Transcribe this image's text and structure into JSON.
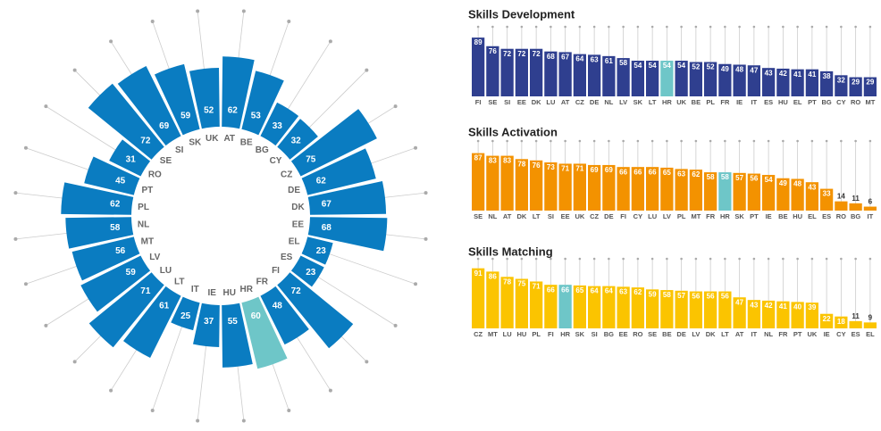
{
  "chart_data": [
    {
      "type": "radial_bar",
      "categories": [
        "AT",
        "BE",
        "BG",
        "CY",
        "CZ",
        "DE",
        "DK",
        "EE",
        "EL",
        "ES",
        "FI",
        "FR",
        "HR",
        "HU",
        "IE",
        "IT",
        "LT",
        "LU",
        "LV",
        "MT",
        "NL",
        "PL",
        "PT",
        "RO",
        "SE",
        "SI",
        "SK",
        "UK"
      ],
      "values": [
        62,
        53,
        33,
        32,
        75,
        62,
        67,
        68,
        23,
        23,
        72,
        48,
        60,
        55,
        37,
        25,
        61,
        71,
        59,
        56,
        58,
        62,
        45,
        31,
        72,
        69,
        59,
        52
      ],
      "color": "#0a7cc1",
      "highlight_category": "HR",
      "highlight_color": "#6ec6c8",
      "rlim": [
        0,
        100
      ]
    },
    {
      "type": "bar",
      "title": "Skills Development",
      "categories": [
        "FI",
        "SE",
        "SI",
        "EE",
        "DK",
        "LU",
        "AT",
        "CZ",
        "DE",
        "NL",
        "LV",
        "SK",
        "LT",
        "HR",
        "UK",
        "BE",
        "PL",
        "FR",
        "IE",
        "IT",
        "ES",
        "HU",
        "EL",
        "PT",
        "BG",
        "CY",
        "RO",
        "MT"
      ],
      "values": [
        89,
        76,
        72,
        72,
        72,
        68,
        67,
        64,
        63,
        61,
        58,
        54,
        54,
        54,
        54,
        52,
        52,
        49,
        48,
        47,
        43,
        42,
        41,
        41,
        38,
        32,
        29,
        29
      ],
      "color": "#2f3f8f",
      "highlight_category": "HR",
      "highlight_color": "#6ec6c8",
      "ylim": [
        0,
        100
      ]
    },
    {
      "type": "bar",
      "title": "Skills Activation",
      "categories": [
        "SE",
        "NL",
        "AT",
        "DK",
        "LT",
        "SI",
        "EE",
        "UK",
        "CZ",
        "DE",
        "FI",
        "CY",
        "LU",
        "LV",
        "PL",
        "MT",
        "FR",
        "HR",
        "SK",
        "PT",
        "IE",
        "BE",
        "HU",
        "EL",
        "ES",
        "RO",
        "BG",
        "IT"
      ],
      "values": [
        87,
        83,
        83,
        78,
        76,
        73,
        71,
        71,
        69,
        69,
        66,
        66,
        66,
        65,
        63,
        62,
        58,
        58,
        57,
        56,
        54,
        49,
        48,
        43,
        33,
        14,
        11,
        6
      ],
      "color": "#f39200",
      "highlight_category": "HR",
      "highlight_color": "#6ec6c8",
      "ylim": [
        0,
        100
      ]
    },
    {
      "type": "bar",
      "title": "Skills Matching",
      "categories": [
        "CZ",
        "MT",
        "LU",
        "HU",
        "PL",
        "FI",
        "HR",
        "SK",
        "SI",
        "BG",
        "EE",
        "RO",
        "SE",
        "BE",
        "DE",
        "LV",
        "DK",
        "LT",
        "AT",
        "IT",
        "NL",
        "FR",
        "PT",
        "UK",
        "IE",
        "CY",
        "ES",
        "EL"
      ],
      "values": [
        91,
        86,
        78,
        75,
        71,
        66,
        66,
        65,
        64,
        64,
        63,
        62,
        59,
        58,
        57,
        56,
        56,
        56,
        47,
        43,
        42,
        41,
        40,
        39,
        22,
        18,
        11,
        9
      ],
      "color": "#fbc400",
      "highlight_category": "HR",
      "highlight_color": "#6ec6c8",
      "ylim": [
        0,
        100
      ]
    }
  ]
}
